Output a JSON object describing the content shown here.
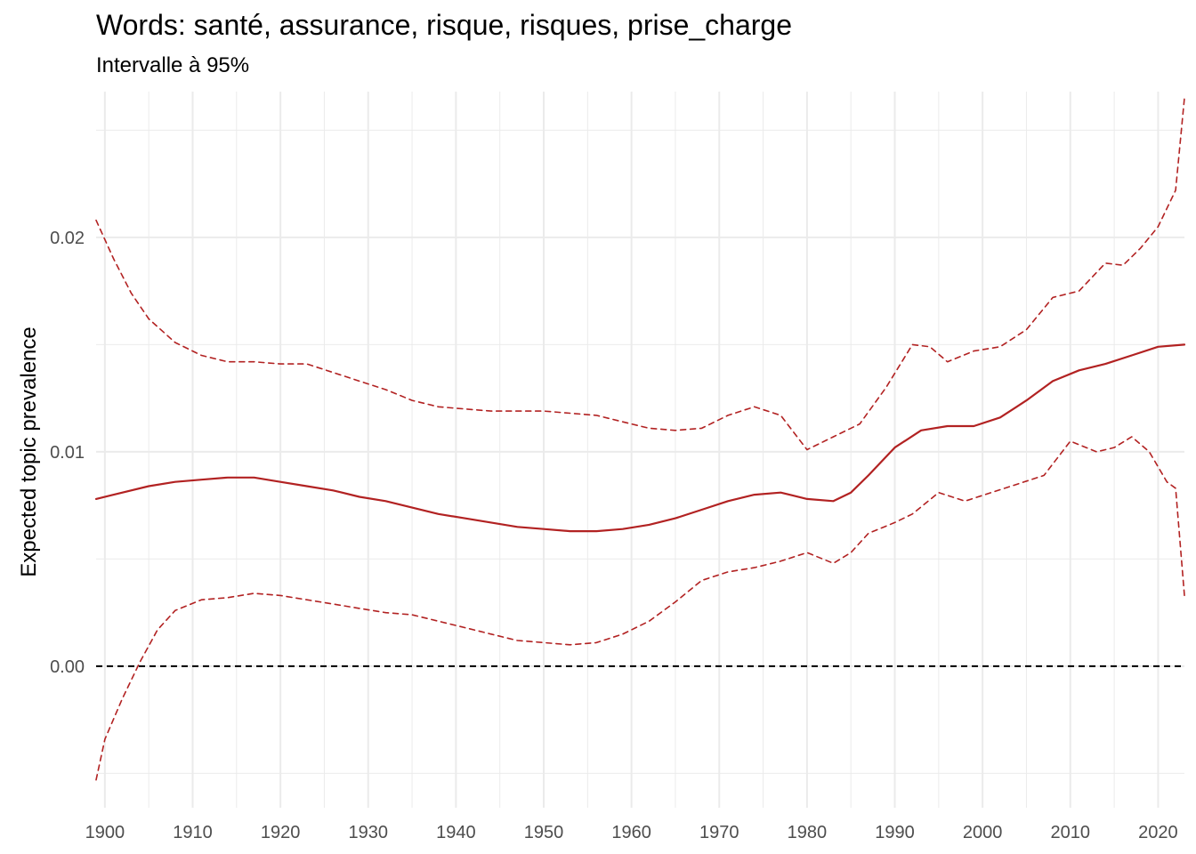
{
  "chart_data": {
    "type": "line",
    "title": "Words: santé, assurance, risque, risques, prise_charge",
    "subtitle": "Intervalle à 95%",
    "xlabel": "",
    "ylabel": "Expected topic prevalence",
    "xlim": [
      1899,
      2023
    ],
    "ylim": [
      -0.0066,
      0.0268
    ],
    "x_ticks": [
      1900,
      1910,
      1920,
      1930,
      1940,
      1950,
      1960,
      1970,
      1980,
      1990,
      2000,
      2010,
      2020
    ],
    "x_tick_labels": [
      "1900",
      "1910",
      "1920",
      "1930",
      "1940",
      "1950",
      "1960",
      "1970",
      "1980",
      "1990",
      "2000",
      "2010",
      "2020"
    ],
    "y_ticks": [
      0.0,
      0.01,
      0.02
    ],
    "y_tick_labels": [
      "0.00",
      "0.01",
      "0.02"
    ],
    "grid": true,
    "reference_line": {
      "y": 0.0,
      "style": "dashed",
      "color": "#000000"
    },
    "colors": {
      "series": "#b22222",
      "grid": "#ebebeb",
      "tick_text": "#4d4d4d"
    },
    "series": [
      {
        "role": "estimate",
        "style": "solid",
        "x": [
          1899,
          1902,
          1905,
          1908,
          1911,
          1914,
          1917,
          1920,
          1923,
          1926,
          1929,
          1932,
          1935,
          1938,
          1941,
          1944,
          1947,
          1950,
          1953,
          1956,
          1959,
          1962,
          1965,
          1968,
          1971,
          1974,
          1977,
          1980,
          1983,
          1985,
          1987,
          1990,
          1993,
          1996,
          1999,
          2002,
          2005,
          2008,
          2011,
          2014,
          2017,
          2020,
          2023
        ],
        "y": [
          0.0078,
          0.0081,
          0.0084,
          0.0086,
          0.0087,
          0.0088,
          0.0088,
          0.0086,
          0.0084,
          0.0082,
          0.0079,
          0.0077,
          0.0074,
          0.0071,
          0.0069,
          0.0067,
          0.0065,
          0.0064,
          0.0063,
          0.0063,
          0.0064,
          0.0066,
          0.0069,
          0.0073,
          0.0077,
          0.008,
          0.0081,
          0.0078,
          0.0077,
          0.0081,
          0.0089,
          0.0102,
          0.011,
          0.0112,
          0.0112,
          0.0116,
          0.0124,
          0.0133,
          0.0138,
          0.0141,
          0.0145,
          0.0149,
          0.015
        ]
      },
      {
        "role": "upper_95",
        "style": "dashed",
        "x": [
          1899,
          1901,
          1903,
          1905,
          1908,
          1911,
          1914,
          1917,
          1920,
          1923,
          1926,
          1929,
          1932,
          1935,
          1938,
          1941,
          1944,
          1947,
          1950,
          1953,
          1956,
          1959,
          1962,
          1965,
          1968,
          1971,
          1974,
          1977,
          1980,
          1983,
          1986,
          1989,
          1992,
          1994,
          1996,
          1999,
          2002,
          2005,
          2008,
          2011,
          2014,
          2016,
          2018,
          2020,
          2022,
          2023
        ],
        "y": [
          0.0208,
          0.019,
          0.0174,
          0.0162,
          0.0151,
          0.0145,
          0.0142,
          0.0142,
          0.0141,
          0.0141,
          0.0137,
          0.0133,
          0.0129,
          0.0124,
          0.0121,
          0.012,
          0.0119,
          0.0119,
          0.0119,
          0.0118,
          0.0117,
          0.0114,
          0.0111,
          0.011,
          0.0111,
          0.0117,
          0.0121,
          0.0117,
          0.0101,
          0.0107,
          0.0113,
          0.013,
          0.015,
          0.0149,
          0.0142,
          0.0147,
          0.0149,
          0.0157,
          0.0172,
          0.0175,
          0.0188,
          0.0187,
          0.0195,
          0.0205,
          0.0222,
          0.0265
        ]
      },
      {
        "role": "lower_95",
        "style": "dashed",
        "x": [
          1899,
          1900,
          1902,
          1904,
          1906,
          1908,
          1911,
          1914,
          1917,
          1920,
          1923,
          1926,
          1929,
          1932,
          1935,
          1938,
          1941,
          1944,
          1947,
          1950,
          1953,
          1956,
          1959,
          1962,
          1965,
          1968,
          1971,
          1974,
          1977,
          1980,
          1983,
          1985,
          1987,
          1990,
          1992,
          1995,
          1998,
          2001,
          2004,
          2007,
          2010,
          2013,
          2015,
          2017,
          2019,
          2021,
          2022,
          2023
        ],
        "y": [
          -0.0053,
          -0.0034,
          -0.0015,
          0.0002,
          0.0017,
          0.0026,
          0.0031,
          0.0032,
          0.0034,
          0.0033,
          0.0031,
          0.0029,
          0.0027,
          0.0025,
          0.0024,
          0.0021,
          0.0018,
          0.0015,
          0.0012,
          0.0011,
          0.001,
          0.0011,
          0.0015,
          0.0021,
          0.003,
          0.004,
          0.0044,
          0.0046,
          0.0049,
          0.0053,
          0.0048,
          0.0053,
          0.0062,
          0.0067,
          0.0071,
          0.0081,
          0.0077,
          0.0081,
          0.0085,
          0.0089,
          0.0105,
          0.01,
          0.0102,
          0.0107,
          0.01,
          0.0086,
          0.0083,
          0.0033
        ]
      }
    ]
  }
}
